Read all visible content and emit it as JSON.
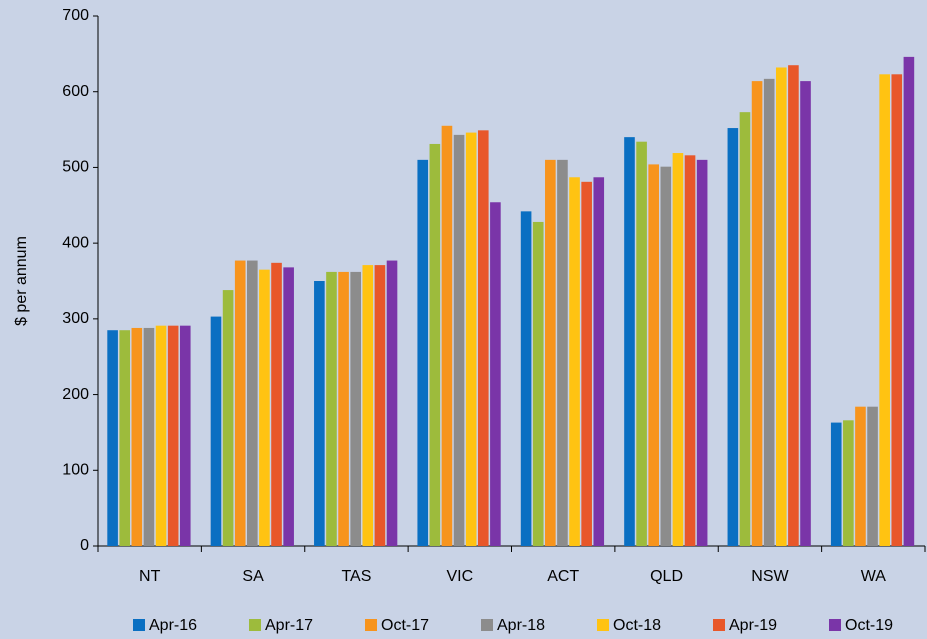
{
  "chart_data": {
    "type": "bar",
    "y_label": "$ per annum",
    "categories": [
      "NT",
      "SA",
      "TAS",
      "VIC",
      "ACT",
      "QLD",
      "NSW",
      "WA"
    ],
    "series": [
      {
        "name": "Apr-16",
        "color": "#0a6fc2",
        "values": [
          285,
          303,
          350,
          510,
          442,
          540,
          552,
          163
        ]
      },
      {
        "name": "Apr-17",
        "color": "#9dbb3c",
        "values": [
          285,
          338,
          362,
          531,
          428,
          534,
          573,
          166
        ]
      },
      {
        "name": "Oct-17",
        "color": "#f7941d",
        "values": [
          288,
          377,
          362,
          555,
          510,
          504,
          614,
          184
        ]
      },
      {
        "name": "Apr-18",
        "color": "#8c8c8c",
        "values": [
          288,
          377,
          362,
          543,
          510,
          501,
          617,
          184
        ]
      },
      {
        "name": "Oct-18",
        "color": "#ffc312",
        "values": [
          291,
          365,
          371,
          546,
          487,
          519,
          632,
          623
        ]
      },
      {
        "name": "Apr-19",
        "color": "#e8572a",
        "values": [
          291,
          374,
          371,
          549,
          481,
          516,
          635,
          623
        ]
      },
      {
        "name": "Oct-19",
        "color": "#7a35a8",
        "values": [
          291,
          368,
          377,
          454,
          487,
          510,
          614,
          646
        ]
      }
    ],
    "ylim": [
      0,
      700
    ],
    "yticks": [
      0,
      100,
      200,
      300,
      400,
      500,
      600,
      700
    ],
    "grid": false,
    "legend": "bottom"
  }
}
